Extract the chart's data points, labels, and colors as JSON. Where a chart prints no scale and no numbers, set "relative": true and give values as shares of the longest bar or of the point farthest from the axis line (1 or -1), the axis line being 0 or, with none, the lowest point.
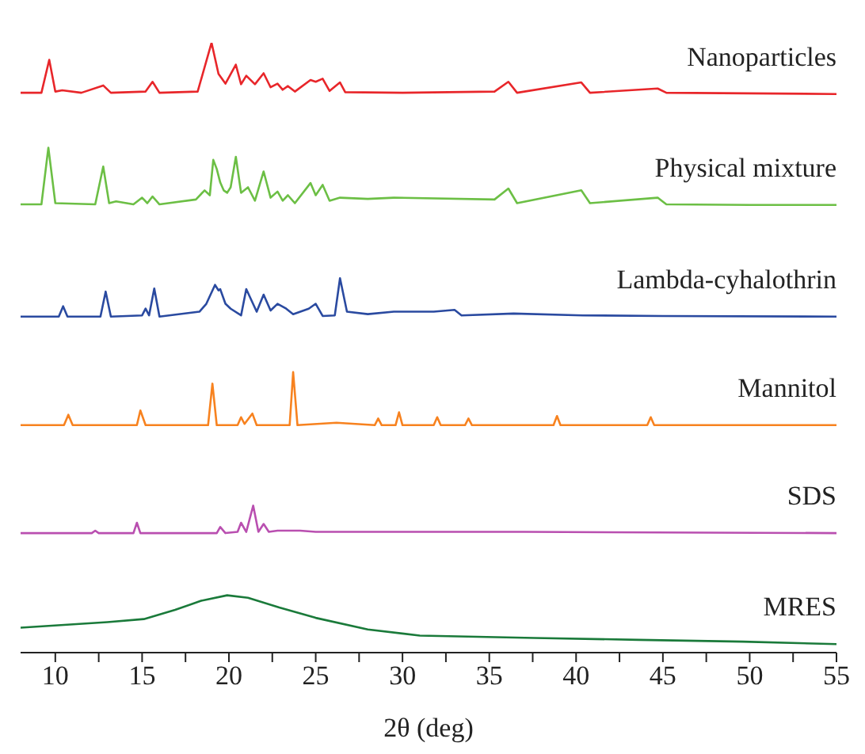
{
  "chart_data": {
    "type": "line",
    "relative": true,
    "xlabel": "2θ (deg)",
    "xlim": [
      8,
      55
    ],
    "xticks": [
      10,
      {
        "value": 12.5,
        "label": null
      },
      15,
      {
        "value": 17.5,
        "label": null
      },
      20,
      {
        "value": 22.5,
        "label": null
      },
      25,
      {
        "value": 27.5,
        "label": null
      },
      30,
      {
        "value": 32.5,
        "label": null
      },
      35,
      {
        "value": 37.5,
        "label": null
      },
      40,
      {
        "value": 42.5,
        "label": null
      },
      45,
      {
        "value": 47.5,
        "label": null
      },
      50,
      {
        "value": 52.5,
        "label": null
      },
      55
    ],
    "marker": "none",
    "line_style": "solid",
    "series": [
      {
        "name": "Nanoparticles",
        "color": "#e8262a",
        "x": [
          8,
          9.2,
          9.65,
          10.0,
          10.4,
          11.5,
          12.76,
          13.2,
          15.2,
          15.6,
          16.0,
          18.2,
          19.0,
          19.4,
          19.8,
          20.4,
          20.7,
          21.0,
          21.5,
          22.0,
          22.4,
          22.8,
          23.1,
          23.4,
          23.8,
          24.7,
          25.0,
          25.4,
          25.8,
          26.4,
          26.7,
          30,
          35.3,
          36.1,
          36.6,
          40.3,
          40.8,
          44.7,
          45.2,
          50,
          55
        ],
        "values": [
          0.918,
          0.918,
          0.972,
          0.92,
          0.922,
          0.918,
          0.93,
          0.918,
          0.92,
          0.936,
          0.918,
          0.92,
          1.0,
          0.949,
          0.933,
          0.964,
          0.932,
          0.946,
          0.932,
          0.95,
          0.927,
          0.933,
          0.923,
          0.929,
          0.92,
          0.939,
          0.936,
          0.941,
          0.921,
          0.935,
          0.919,
          0.918,
          0.92,
          0.936,
          0.918,
          0.935,
          0.918,
          0.925,
          0.918,
          0.917,
          0.916
        ]
      },
      {
        "name": "Physical mixture",
        "color": "#6cbf45",
        "x": [
          8,
          9.2,
          9.6,
          10.0,
          12.3,
          12.76,
          13.1,
          13.5,
          14.5,
          15.0,
          15.3,
          15.6,
          16.0,
          18.1,
          18.6,
          18.9,
          19.1,
          19.3,
          19.5,
          19.7,
          19.9,
          20.1,
          20.4,
          20.7,
          21.1,
          21.5,
          22.0,
          22.4,
          22.8,
          23.1,
          23.4,
          23.8,
          24.7,
          25.0,
          25.4,
          25.8,
          26.4,
          28.0,
          29.5,
          35.3,
          36.1,
          36.6,
          40.3,
          40.8,
          44.7,
          45.2,
          50,
          55
        ],
        "values": [
          0.735,
          0.735,
          0.828,
          0.737,
          0.735,
          0.797,
          0.737,
          0.74,
          0.735,
          0.746,
          0.737,
          0.748,
          0.735,
          0.743,
          0.758,
          0.75,
          0.808,
          0.793,
          0.771,
          0.758,
          0.754,
          0.763,
          0.813,
          0.754,
          0.763,
          0.741,
          0.789,
          0.746,
          0.756,
          0.741,
          0.75,
          0.737,
          0.77,
          0.75,
          0.767,
          0.741,
          0.746,
          0.744,
          0.746,
          0.743,
          0.761,
          0.737,
          0.758,
          0.737,
          0.746,
          0.735,
          0.734,
          0.734
        ]
      },
      {
        "name": "Lambda-cyhalothrin",
        "color": "#2a4aa0",
        "x": [
          8,
          10.2,
          10.45,
          10.7,
          12.6,
          12.9,
          13.2,
          15.0,
          15.2,
          15.4,
          15.7,
          16.0,
          18.3,
          18.7,
          19.2,
          19.4,
          19.5,
          19.8,
          20.1,
          20.7,
          21.0,
          21.6,
          22.0,
          22.4,
          22.8,
          23.3,
          23.7,
          24.6,
          25.0,
          25.4,
          26.1,
          26.4,
          26.8,
          28.0,
          29.5,
          31.8,
          33.0,
          33.4,
          36.4,
          40.4,
          45,
          55
        ],
        "values": [
          0.551,
          0.551,
          0.568,
          0.551,
          0.551,
          0.592,
          0.551,
          0.553,
          0.564,
          0.553,
          0.597,
          0.551,
          0.559,
          0.572,
          0.603,
          0.594,
          0.596,
          0.572,
          0.564,
          0.553,
          0.596,
          0.559,
          0.587,
          0.561,
          0.572,
          0.564,
          0.555,
          0.564,
          0.572,
          0.552,
          0.553,
          0.614,
          0.559,
          0.555,
          0.559,
          0.559,
          0.562,
          0.553,
          0.556,
          0.553,
          0.552,
          0.551
        ]
      },
      {
        "name": "Mannitol",
        "color": "#f7821f",
        "x": [
          8,
          10.5,
          10.75,
          11.0,
          14.7,
          14.9,
          15.2,
          18.8,
          19.05,
          19.3,
          20.5,
          20.7,
          20.9,
          21.35,
          21.6,
          23.5,
          23.7,
          23.95,
          26.2,
          28.4,
          28.6,
          28.8,
          29.6,
          29.8,
          30.0,
          31.8,
          32.0,
          32.2,
          33.6,
          33.8,
          34.0,
          38.7,
          38.9,
          39.1,
          44.1,
          44.3,
          44.5,
          55
        ],
        "values": [
          0.373,
          0.373,
          0.39,
          0.373,
          0.373,
          0.397,
          0.373,
          0.373,
          0.441,
          0.373,
          0.373,
          0.386,
          0.375,
          0.392,
          0.373,
          0.373,
          0.46,
          0.373,
          0.377,
          0.373,
          0.384,
          0.373,
          0.373,
          0.394,
          0.373,
          0.373,
          0.386,
          0.373,
          0.373,
          0.384,
          0.373,
          0.373,
          0.388,
          0.373,
          0.373,
          0.386,
          0.373,
          0.373
        ]
      },
      {
        "name": "SDS",
        "color": "#b94fb0",
        "x": [
          8,
          12.1,
          12.3,
          12.5,
          14.5,
          14.7,
          14.9,
          19.3,
          19.5,
          19.8,
          20.5,
          20.7,
          21.0,
          21.4,
          21.7,
          22.0,
          22.3,
          22.8,
          24.1,
          25,
          29.4,
          37,
          55
        ],
        "values": [
          0.196,
          0.196,
          0.2,
          0.196,
          0.196,
          0.213,
          0.196,
          0.196,
          0.206,
          0.196,
          0.198,
          0.213,
          0.198,
          0.241,
          0.198,
          0.211,
          0.198,
          0.2,
          0.2,
          0.198,
          0.198,
          0.198,
          0.196
        ]
      },
      {
        "name": "MRES",
        "color": "#1a7a3a",
        "x": [
          8,
          13.0,
          15.1,
          16.9,
          18.4,
          19.9,
          21.1,
          22.9,
          25.0,
          28.0,
          31.0,
          37.6,
          43.6,
          49.6,
          55
        ],
        "values": [
          0.041,
          0.05,
          0.055,
          0.07,
          0.085,
          0.094,
          0.09,
          0.074,
          0.057,
          0.038,
          0.028,
          0.024,
          0.021,
          0.018,
          0.014
        ]
      }
    ]
  }
}
